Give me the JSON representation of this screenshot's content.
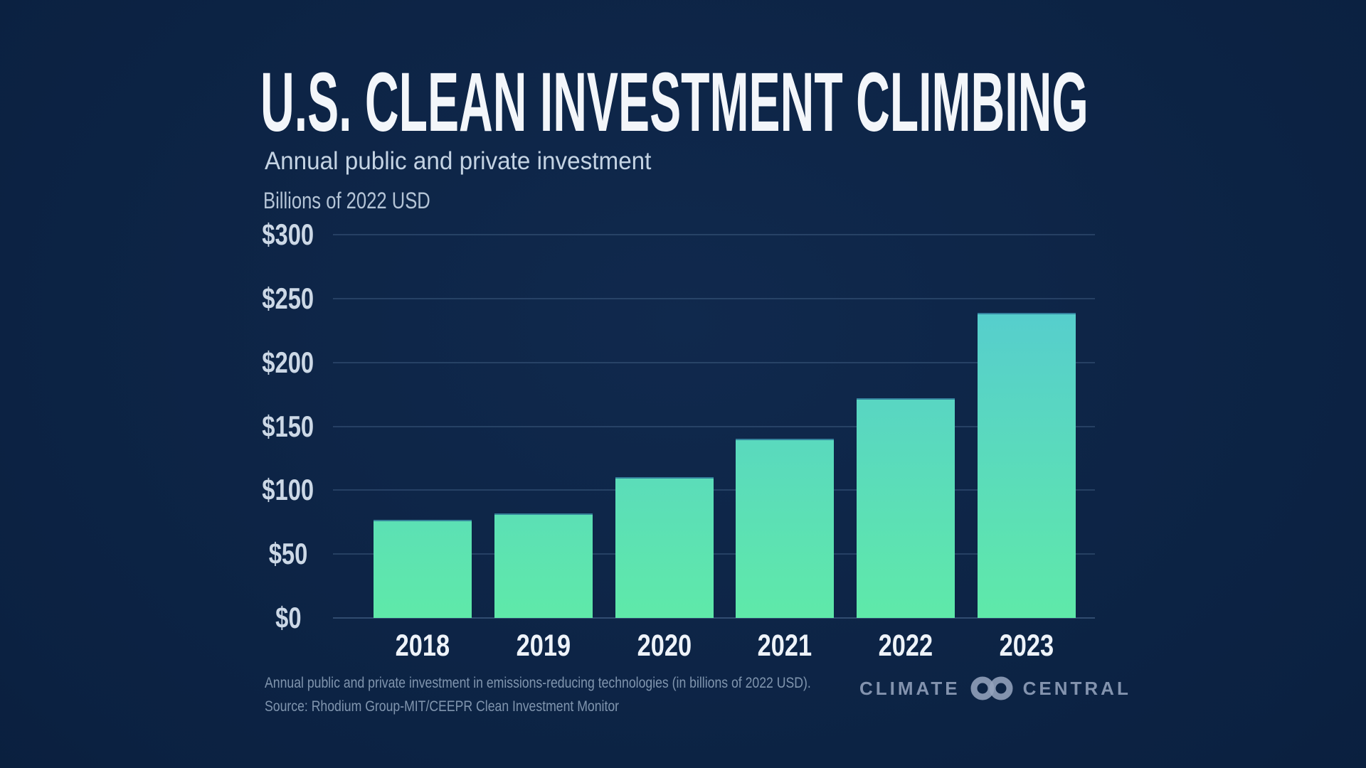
{
  "chart_data": {
    "type": "bar",
    "title": "U.S. CLEAN INVESTMENT CLIMBING",
    "subtitle": "Annual public and private investment",
    "ylabel": "Billions of 2022 USD",
    "categories": [
      "2018",
      "2019",
      "2020",
      "2021",
      "2022",
      "2023"
    ],
    "values": [
      77,
      82,
      110,
      140,
      172,
      239
    ],
    "ylim": [
      0,
      300
    ],
    "yticks": [
      "$0",
      "$50",
      "$100",
      "$150",
      "$200",
      "$250",
      "$300"
    ],
    "grid": true,
    "legend": "none",
    "bar_gradient": {
      "top": "#54c7d6",
      "bottom": "#5fe9a9"
    }
  },
  "footer": {
    "line1": "Annual public and private investment in emissions-reducing technologies (in billions of 2022 USD).",
    "line2": "Source: Rhodium Group-MIT/CEEPR Clean Investment Monitor"
  },
  "logo": {
    "left": "CLIMATE",
    "right": "CENTRAL"
  },
  "colors": {
    "background": "#0b2141",
    "title_text": "#f3f6fa",
    "subtitle_text": "#c4d3e3",
    "axis_text": "#ccd8e6",
    "gridline": "rgba(128,162,202,0.22)",
    "footer_text": "#8095ae",
    "logo_text": "rgba(148,163,189,0.88)"
  }
}
